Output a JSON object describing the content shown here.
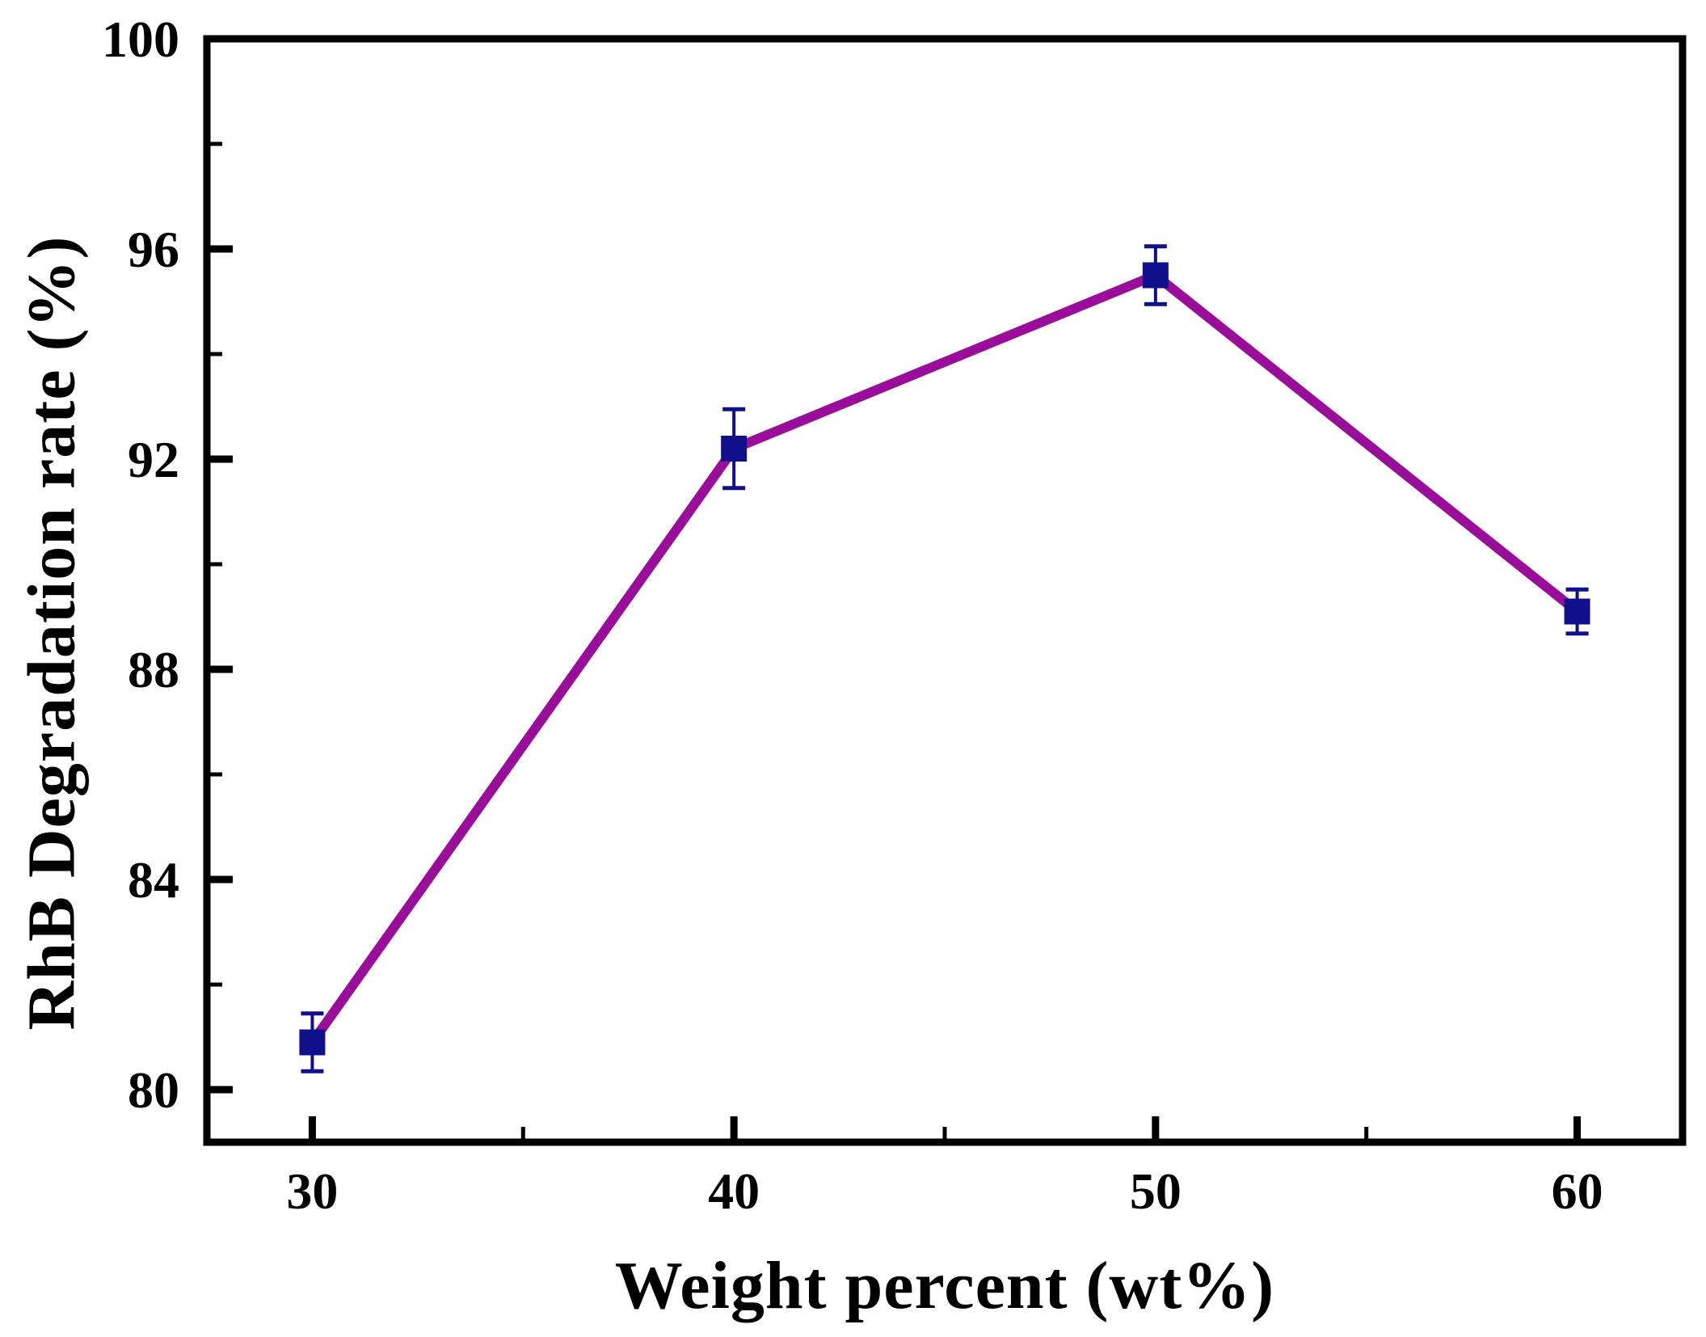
{
  "figure": {
    "background_color": "#ffffff",
    "text_color": "#000000"
  },
  "chart_data": {
    "type": "line",
    "title": "",
    "xlabel": "Weight percent (wt%)",
    "ylabel": "RhB Degradation rate (%)",
    "x": [
      30,
      40,
      50,
      60
    ],
    "series": [
      {
        "values": [
          80.9,
          92.2,
          95.5,
          89.1
        ],
        "y_errors": [
          0.55,
          0.75,
          0.55,
          0.42
        ],
        "marker": "filled-square",
        "line_color": "#9A0D9A",
        "marker_color": "#10108C",
        "errorbar_color": "#10108C"
      }
    ],
    "xlim": [
      27.5,
      62.5
    ],
    "ylim": [
      79,
      100
    ],
    "x_major_ticks": [
      30,
      40,
      50,
      60
    ],
    "x_minor_ticks": [
      35,
      45,
      55
    ],
    "y_major_ticks": [
      80,
      84,
      88,
      92,
      96,
      100
    ],
    "y_minor_ticks": [
      82,
      86,
      90,
      94,
      98
    ],
    "x_tick_labels": [
      "30",
      "40",
      "50",
      "60"
    ],
    "y_tick_labels": [
      "80",
      "84",
      "88",
      "92",
      "96",
      "100"
    ],
    "grid": "off",
    "legend": "none",
    "frame": "full-box",
    "tick_direction": "in",
    "axis_color": "#000000"
  }
}
